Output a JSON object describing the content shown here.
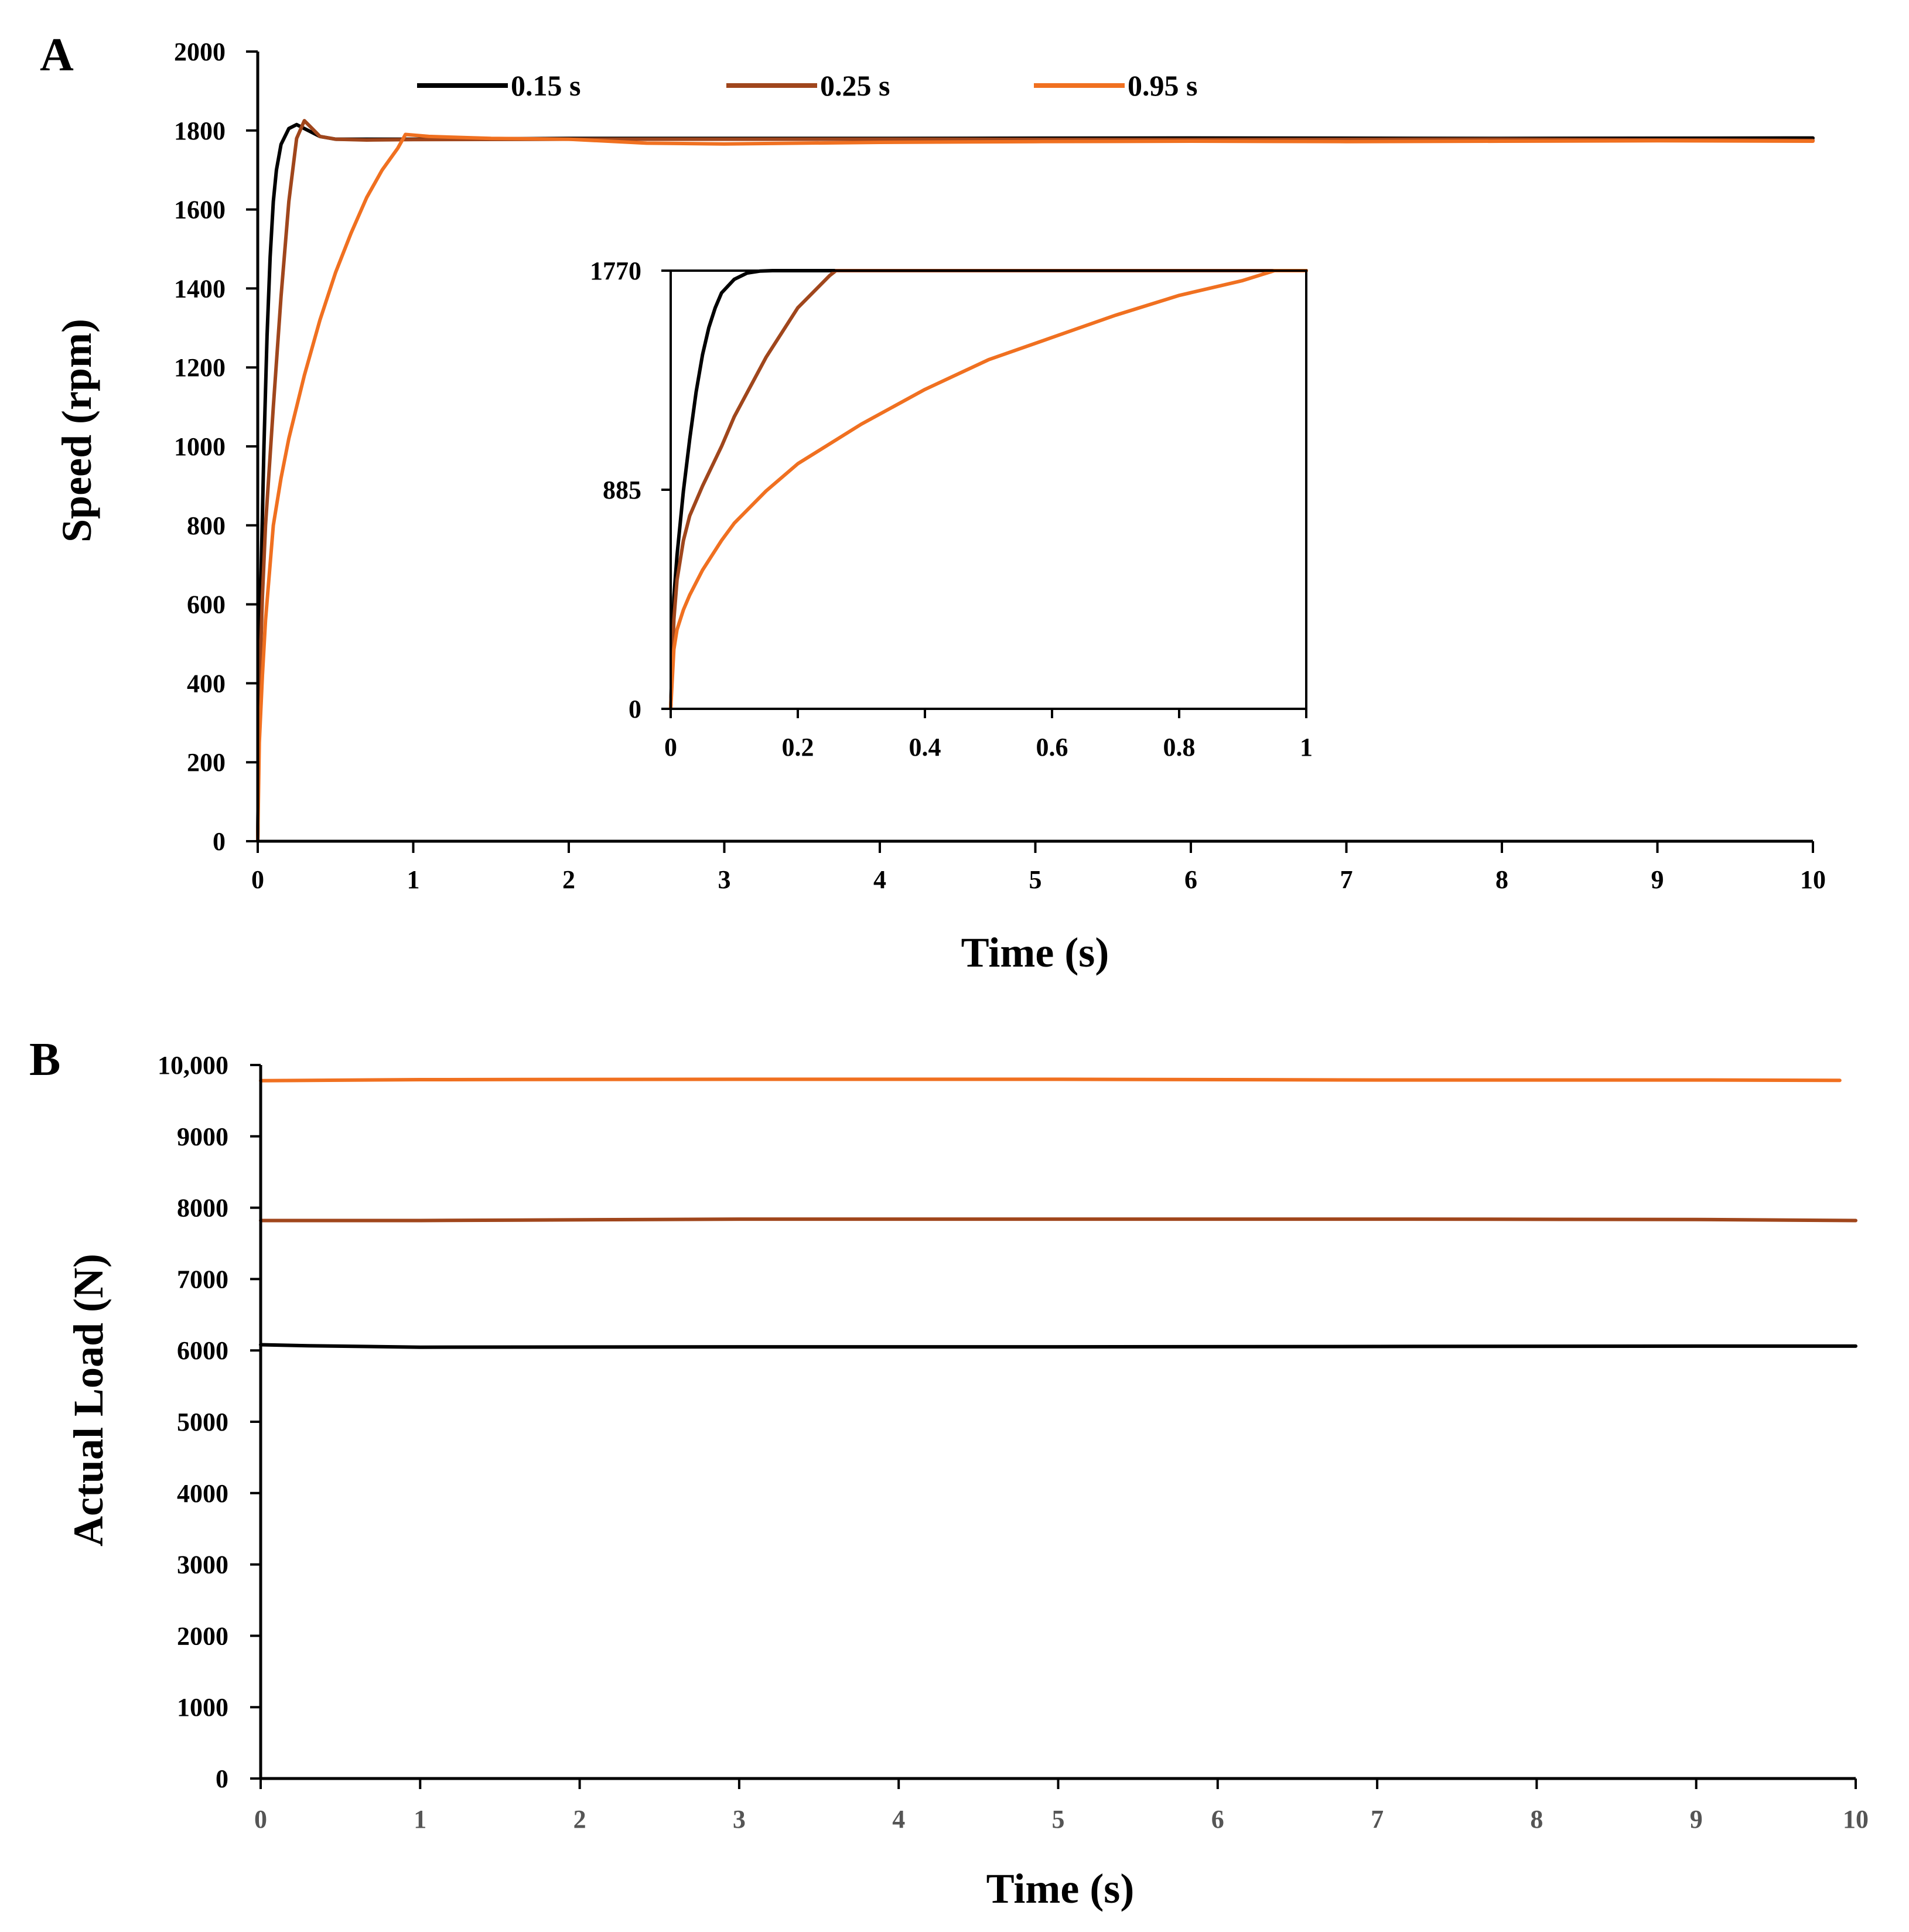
{
  "chart_data": [
    {
      "id": "A",
      "panel_label": "A",
      "type": "line",
      "xlabel": "Time (s)",
      "ylabel": "Speed (rpm)",
      "xlim": [
        0,
        10
      ],
      "ylim": [
        0,
        2000
      ],
      "xticks": [
        0,
        1,
        2,
        3,
        4,
        5,
        6,
        7,
        8,
        9,
        10
      ],
      "xtick_labels": [
        "0",
        "1",
        "2",
        "3",
        "4",
        "5",
        "6",
        "7",
        "8",
        "9",
        "10"
      ],
      "yticks": [
        0,
        200,
        400,
        600,
        800,
        1000,
        1200,
        1400,
        1600,
        1800,
        2000
      ],
      "ytick_labels": [
        "0",
        "200",
        "400",
        "600",
        "800",
        "1000",
        "1200",
        "1400",
        "1600",
        "1800",
        "2000"
      ],
      "grid": false,
      "legend_position": "top-center",
      "series": [
        {
          "name": "0.15 s",
          "color": "#000000",
          "x": [
            0,
            0.01,
            0.02,
            0.04,
            0.06,
            0.08,
            0.1,
            0.12,
            0.15,
            0.2,
            0.25,
            0.3,
            0.4,
            0.5,
            1,
            2,
            4,
            6,
            8,
            10
          ],
          "y": [
            0,
            420,
            650,
            1000,
            1280,
            1480,
            1620,
            1700,
            1765,
            1805,
            1815,
            1805,
            1785,
            1778,
            1778,
            1780,
            1780,
            1781,
            1780,
            1781
          ]
        },
        {
          "name": "0.25 s",
          "color": "#A0461C",
          "x": [
            0,
            0.01,
            0.03,
            0.05,
            0.1,
            0.15,
            0.2,
            0.25,
            0.3,
            0.35,
            0.4,
            0.5,
            0.7,
            1,
            2,
            4,
            6,
            8,
            10
          ],
          "y": [
            0,
            380,
            620,
            800,
            1100,
            1380,
            1620,
            1780,
            1825,
            1805,
            1785,
            1778,
            1776,
            1777,
            1778,
            1778,
            1777,
            1778,
            1775
          ]
        },
        {
          "name": "0.95 s",
          "color": "#F07020",
          "x": [
            0,
            0.01,
            0.03,
            0.05,
            0.1,
            0.15,
            0.2,
            0.3,
            0.4,
            0.5,
            0.6,
            0.7,
            0.8,
            0.9,
            0.95,
            1.1,
            1.5,
            2,
            2.5,
            3,
            4,
            5,
            6,
            7,
            8,
            9,
            10
          ],
          "y": [
            0,
            250,
            420,
            560,
            800,
            920,
            1020,
            1180,
            1320,
            1440,
            1540,
            1630,
            1700,
            1755,
            1790,
            1785,
            1780,
            1778,
            1768,
            1766,
            1770,
            1772,
            1773,
            1772,
            1773,
            1774,
            1773
          ]
        }
      ]
    },
    {
      "id": "A-inset",
      "type": "line",
      "xlabel": "",
      "ylabel": "",
      "xlim": [
        0,
        1
      ],
      "ylim": [
        0,
        1770
      ],
      "xticks": [
        0,
        0.2,
        0.4,
        0.6,
        0.8,
        1
      ],
      "xtick_labels": [
        "0",
        "0.2",
        "0.4",
        "0.6",
        "0.8",
        "1"
      ],
      "yticks": [
        0,
        885,
        1770
      ],
      "ytick_labels": [
        "0",
        "885",
        "1770"
      ],
      "grid": false,
      "series": [
        {
          "name": "0.15 s",
          "color": "#000000",
          "x": [
            0,
            0.005,
            0.01,
            0.02,
            0.03,
            0.04,
            0.05,
            0.06,
            0.07,
            0.08,
            0.1,
            0.12,
            0.14,
            0.16,
            0.18,
            1
          ],
          "y": [
            0,
            450,
            620,
            880,
            1090,
            1280,
            1430,
            1540,
            1620,
            1680,
            1735,
            1760,
            1768,
            1770,
            1770,
            1770
          ]
        },
        {
          "name": "0.25 s",
          "color": "#A0461C",
          "x": [
            0,
            0.005,
            0.01,
            0.02,
            0.03,
            0.05,
            0.08,
            0.1,
            0.15,
            0.2,
            0.25,
            0.26,
            1
          ],
          "y": [
            0,
            360,
            520,
            680,
            780,
            900,
            1060,
            1180,
            1420,
            1620,
            1750,
            1770,
            1770
          ]
        },
        {
          "name": "0.95 s",
          "color": "#F07020",
          "x": [
            0,
            0.005,
            0.01,
            0.02,
            0.03,
            0.05,
            0.08,
            0.1,
            0.15,
            0.2,
            0.3,
            0.4,
            0.5,
            0.6,
            0.7,
            0.8,
            0.9,
            0.95,
            1
          ],
          "y": [
            0,
            240,
            320,
            400,
            460,
            560,
            680,
            750,
            880,
            990,
            1150,
            1290,
            1410,
            1500,
            1590,
            1670,
            1730,
            1770,
            1770
          ]
        }
      ]
    },
    {
      "id": "B",
      "panel_label": "B",
      "type": "line",
      "xlabel": "Time (s)",
      "ylabel": "Actual Load (N)",
      "xlim": [
        0,
        10
      ],
      "ylim": [
        0,
        10000
      ],
      "xticks": [
        0,
        1,
        2,
        3,
        4,
        5,
        6,
        7,
        8,
        9,
        10
      ],
      "xtick_labels": [
        "0",
        "1",
        "2",
        "3",
        "4",
        "5",
        "6",
        "7",
        "8",
        "9",
        "10"
      ],
      "yticks": [
        0,
        1000,
        2000,
        3000,
        4000,
        5000,
        6000,
        7000,
        8000,
        9000,
        10000
      ],
      "ytick_labels": [
        "0",
        "1000",
        "2000",
        "3000",
        "4000",
        "5000",
        "6000",
        "7000",
        "8000",
        "9000",
        "10,000"
      ],
      "grid": false,
      "series": [
        {
          "name": "0.15 s",
          "color": "#000000",
          "x": [
            0,
            0.3,
            1,
            3,
            5,
            7,
            9,
            10
          ],
          "y": [
            6080,
            6065,
            6045,
            6050,
            6050,
            6055,
            6060,
            6060
          ]
        },
        {
          "name": "0.25 s",
          "color": "#A0461C",
          "x": [
            0,
            1,
            3,
            5,
            7,
            9,
            10
          ],
          "y": [
            7820,
            7820,
            7840,
            7840,
            7840,
            7835,
            7820
          ]
        },
        {
          "name": "0.95 s",
          "color": "#F07020",
          "x": [
            0,
            1,
            3,
            5,
            7,
            9,
            9.9
          ],
          "y": [
            9780,
            9795,
            9800,
            9800,
            9790,
            9790,
            9785
          ]
        }
      ]
    }
  ]
}
